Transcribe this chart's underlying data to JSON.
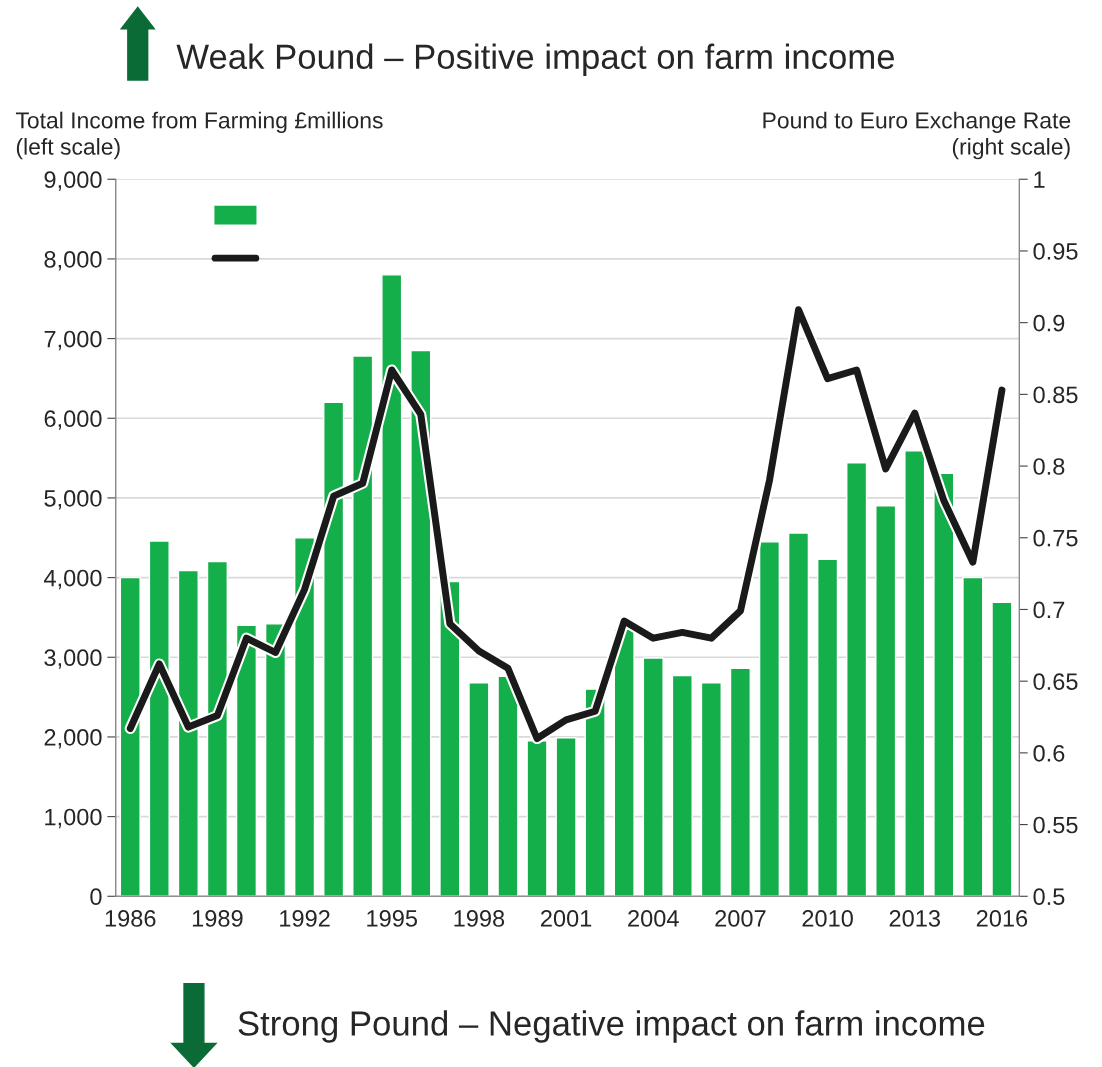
{
  "chart_data": {
    "type": "bar",
    "annotations": [
      "Weak Pound – Positive impact on farm income",
      "Strong Pound – Negative impact on farm income"
    ],
    "ylabel": "Total Income from Farming £millions\n(left scale)",
    "y2label": "Pound to Euro Exchange Rate\n(right scale)",
    "x": [
      1986,
      1987,
      1988,
      1989,
      1990,
      1991,
      1992,
      1993,
      1994,
      1995,
      1996,
      1997,
      1998,
      1999,
      2000,
      2001,
      2002,
      2003,
      2004,
      2005,
      2006,
      2007,
      2008,
      2009,
      2010,
      2011,
      2012,
      2013,
      2014,
      2015,
      2016
    ],
    "series": [
      {
        "color": "#14ae4a",
        "values": [
          4000,
          4460,
          4090,
          4200,
          3400,
          3420,
          4500,
          6200,
          6780,
          7800,
          6850,
          3950,
          2680,
          2760,
          1950,
          1990,
          2600,
          3350,
          2990,
          2770,
          2680,
          2860,
          4450,
          4560,
          4230,
          5440,
          4900,
          5590,
          5310,
          4000,
          3690
        ]
      },
      {
        "type": "line",
        "axis": "y2",
        "color": "#1a1a1a",
        "values": [
          0.617,
          0.662,
          0.618,
          0.626,
          0.68,
          0.67,
          0.714,
          0.779,
          0.788,
          0.867,
          0.836,
          0.69,
          0.671,
          0.659,
          0.61,
          0.623,
          0.629,
          0.692,
          0.68,
          0.684,
          0.68,
          0.699,
          0.79,
          0.909,
          0.861,
          0.867,
          0.798,
          0.837,
          0.776,
          0.733,
          0.853
        ]
      }
    ],
    "xlim": [
      1985.5,
      2016.6
    ],
    "xticks": [
      1986,
      1989,
      1992,
      1995,
      1998,
      2001,
      2004,
      2007,
      2010,
      2013,
      2016
    ],
    "ylim": [
      0,
      9000
    ],
    "yticks": [
      0,
      {
        "value": 1000,
        "label": "1,000"
      },
      {
        "value": 2000,
        "label": "2,000"
      },
      {
        "value": 3000,
        "label": "3,000"
      },
      {
        "value": 4000,
        "label": "4,000"
      },
      {
        "value": 5000,
        "label": "5,000"
      },
      {
        "value": 6000,
        "label": "6,000"
      },
      {
        "value": 7000,
        "label": "7,000"
      },
      {
        "value": 8000,
        "label": "8,000"
      },
      {
        "value": 9000,
        "label": "9,000"
      }
    ],
    "y2lim": [
      0.5,
      1
    ],
    "y2ticks": [
      0.5,
      0.55,
      0.6,
      0.65,
      0.7,
      0.75,
      0.8,
      0.85,
      0.9,
      0.95,
      1
    ],
    "grid": "y"
  }
}
